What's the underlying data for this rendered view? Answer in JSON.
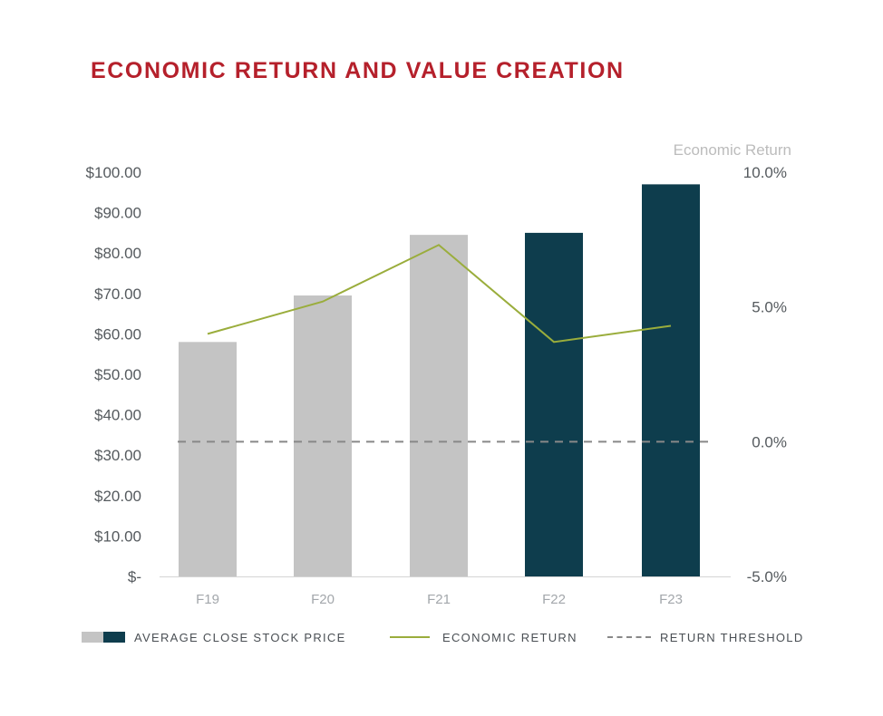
{
  "title": "ECONOMIC RETURN AND VALUE CREATION",
  "chart_data": {
    "type": "bar",
    "categories": [
      "F19",
      "F20",
      "F21",
      "F22",
      "F23"
    ],
    "series": [
      {
        "name": "AVERAGE CLOSE STOCK PRICE",
        "type": "bar",
        "axis": "left",
        "values": [
          58,
          69.5,
          84.5,
          85,
          97
        ],
        "colors": [
          "#c4c4c4",
          "#c4c4c4",
          "#c4c4c4",
          "#0e3d4d",
          "#0e3d4d"
        ]
      },
      {
        "name": "ECONOMIC RETURN",
        "type": "line",
        "axis": "right",
        "values": [
          4.0,
          5.2,
          7.3,
          3.7,
          4.3
        ],
        "color": "#9aad3c"
      },
      {
        "name": "RETURN THRESHOLD",
        "type": "dashed-line",
        "axis": "right",
        "value": 0.0,
        "color": "#888888"
      }
    ],
    "left_axis": {
      "ylim": [
        0,
        100
      ],
      "ticks": [
        100,
        90,
        80,
        70,
        60,
        50,
        40,
        30,
        20,
        10,
        0
      ],
      "tick_labels": [
        "$100.00",
        "$90.00",
        "$80.00",
        "$70.00",
        "$60.00",
        "$50.00",
        "$40.00",
        "$30.00",
        "$20.00",
        "$10.00",
        "$-"
      ]
    },
    "right_axis": {
      "label": "Economic Return",
      "ylim": [
        -5,
        10
      ],
      "ticks": [
        10,
        5,
        0,
        -5
      ],
      "tick_labels": [
        "10.0%",
        "5.0%",
        "0.0%",
        "-5.0%"
      ]
    },
    "legend": {
      "position": "bottom",
      "labels": [
        "AVERAGE CLOSE STOCK PRICE",
        "ECONOMIC RETURN",
        "RETURN THRESHOLD"
      ]
    }
  }
}
